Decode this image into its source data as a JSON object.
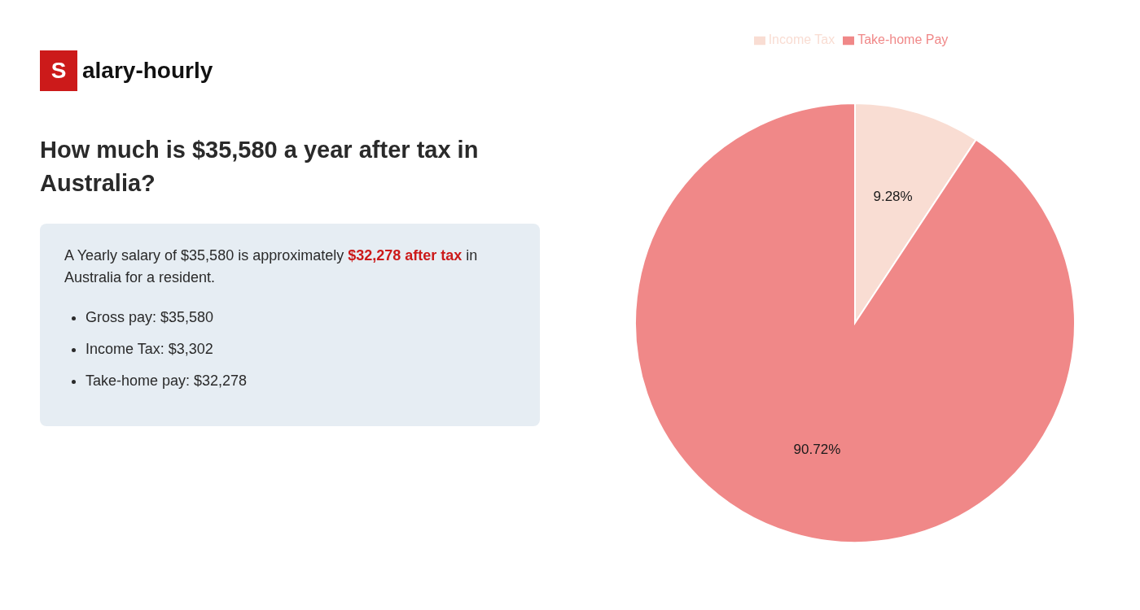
{
  "chart_data": {
    "type": "pie",
    "title": "How much is $35,580 a year after tax in Australia?",
    "categories": [
      "Income Tax",
      "Take-home Pay"
    ],
    "values": [
      9.28,
      90.72
    ],
    "value_labels": [
      "9.28%",
      "90.72%"
    ],
    "colors": [
      "#f9ddd3",
      "#f08888"
    ],
    "data_labels": true,
    "legend": "top",
    "annotations": {
      "logo": [
        {
          "text": "S",
          "color": "#cc1a1a"
        },
        {
          "text": "alary-hourly"
        }
      ],
      "info": [
        [
          {
            "text": "A Yearly salary of $35,580 is approximately "
          },
          {
            "text": "$32,278 after tax",
            "color": "#cc1a1a"
          },
          {
            "text": " in"
          }
        ],
        [
          {
            "text": "Australia for a resident."
          }
        ]
      ],
      "bullets": [
        "Gross pay: $35,580",
        "Income Tax: $3,302",
        "Take-home pay: $32,278"
      ]
    }
  }
}
